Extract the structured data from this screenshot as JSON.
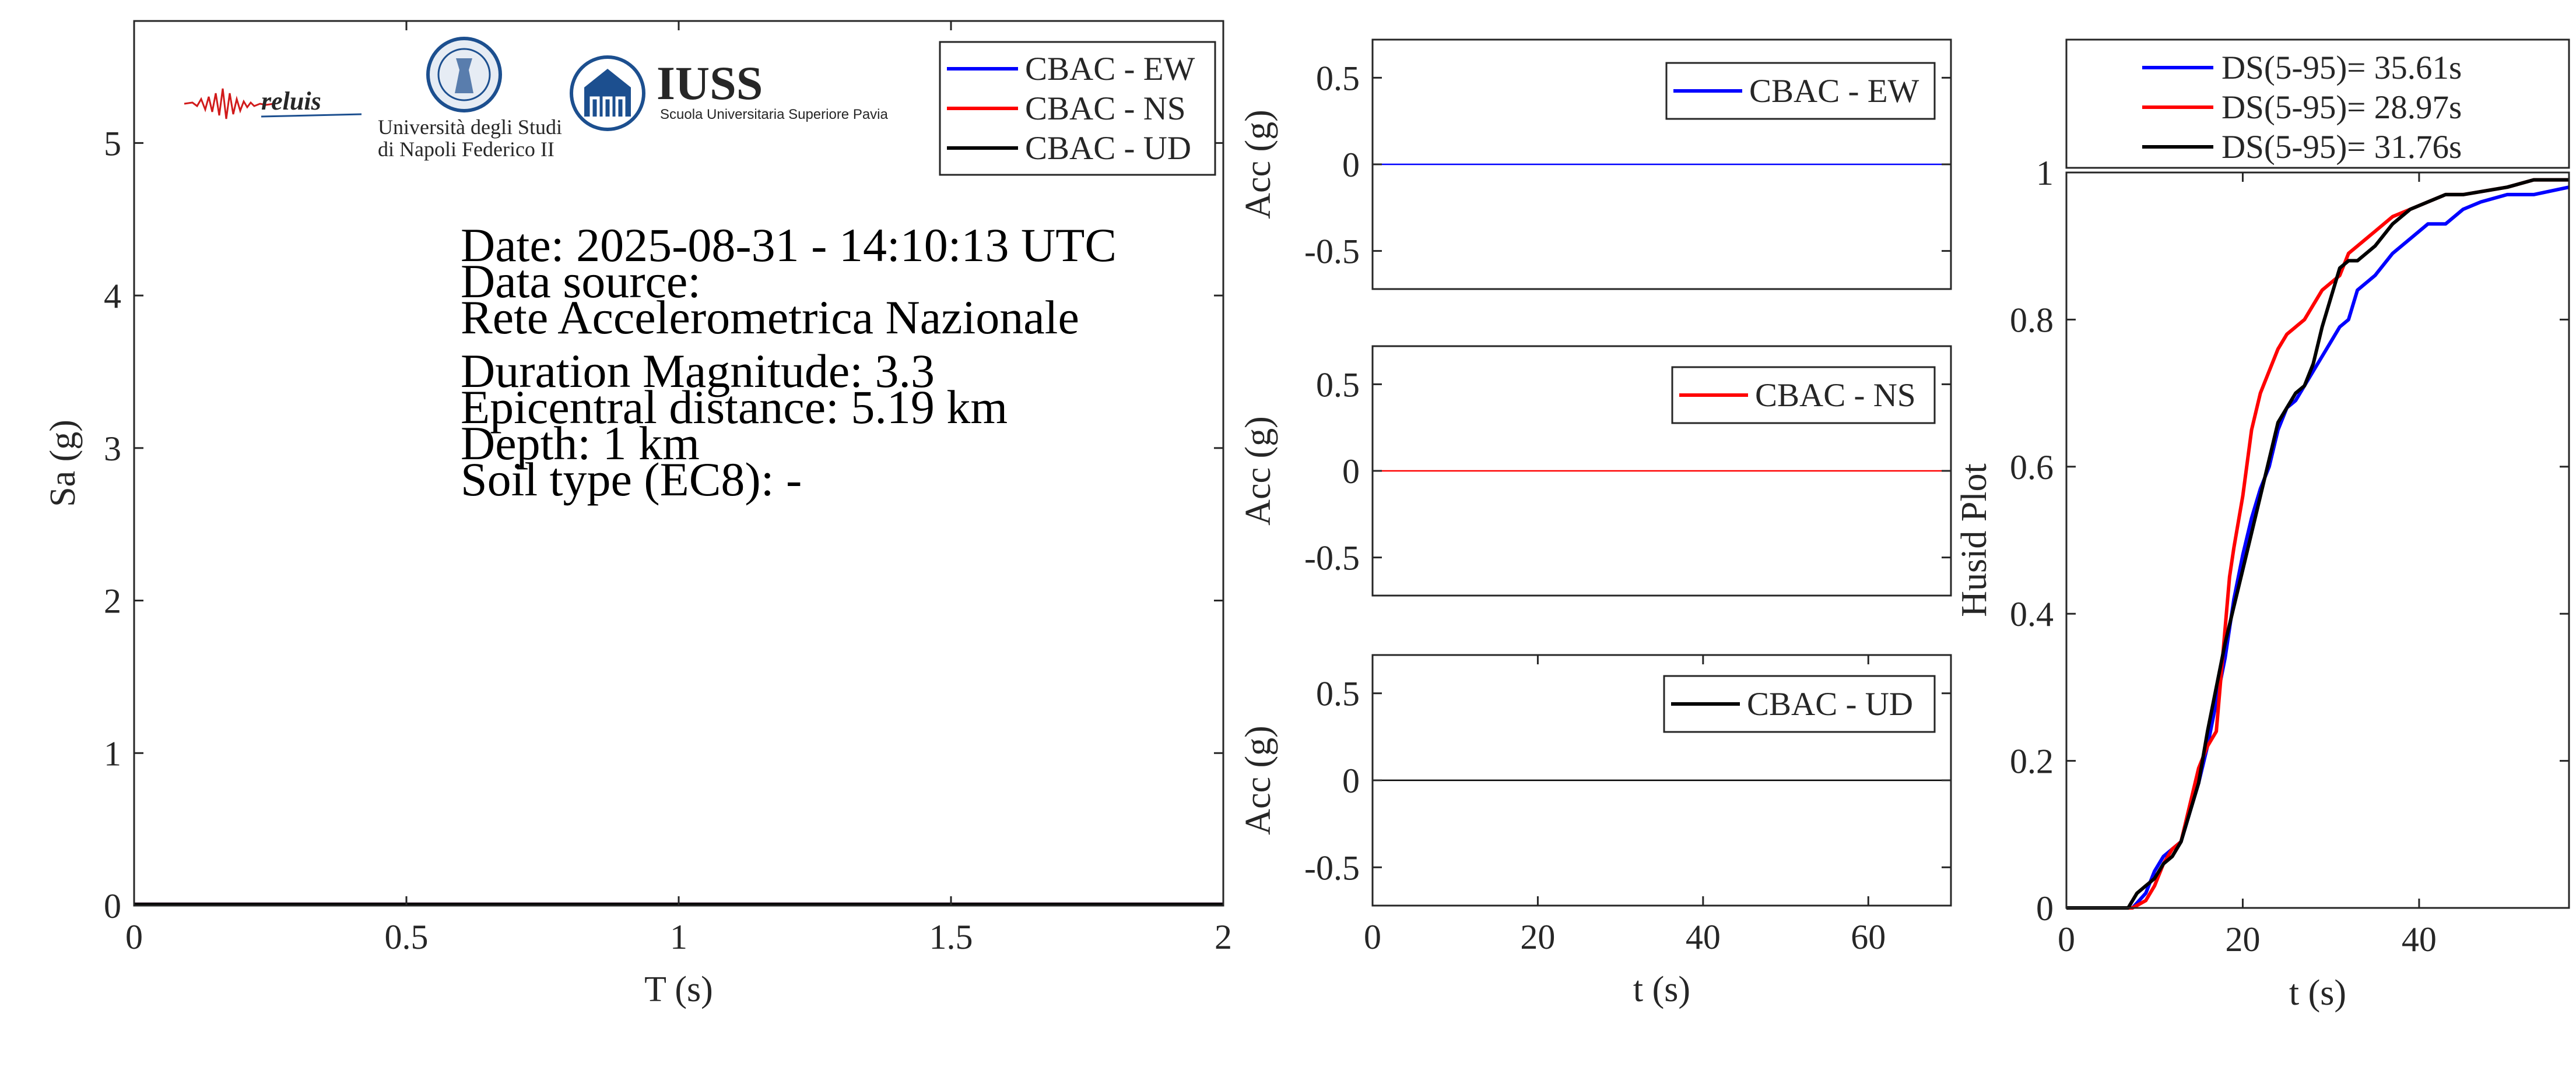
{
  "colors": {
    "ew": "#0000ff",
    "ns": "#ff0000",
    "ud": "#000000",
    "axis": "#262626",
    "iuss": "#1c4f8f"
  },
  "logos": {
    "reluis": "reluis",
    "unina_line1": "Università degli Studi",
    "unina_line2": "di Napoli Federico II",
    "iuss_name": "IUSS",
    "iuss_sub": "Scuola Universitaria Superiore Pavia"
  },
  "info": {
    "date": "Date: 2025-08-31 - 14:10:13 UTC",
    "source_label": "Data source:",
    "source": "Rete Accelerometrica Nazionale",
    "magnitude": "Duration Magnitude: 3.3",
    "distance": "Epicentral distance: 5.19 km",
    "depth": "Depth: 1 km",
    "soil": "Soil type (EC8): -"
  },
  "chart_data": [
    {
      "id": "spectrum",
      "type": "line",
      "xlabel": "T (s)",
      "ylabel": "Sa (g)",
      "xlim": [
        0,
        2
      ],
      "ylim": [
        0,
        5.8
      ],
      "xticks": [
        0,
        0.5,
        1,
        1.5,
        2
      ],
      "xtick_labels": [
        "0",
        "0.5",
        "1",
        "1.5",
        "2"
      ],
      "yticks": [
        0,
        1,
        2,
        3,
        4,
        5
      ],
      "ytick_labels": [
        "0",
        "1",
        "2",
        "3",
        "4",
        "5"
      ],
      "legend_position": "top-right",
      "series": [
        {
          "name": "CBAC - EW",
          "color_key": "ew",
          "x": [
            0,
            2
          ],
          "y": [
            0.01,
            0.01
          ]
        },
        {
          "name": "CBAC - NS",
          "color_key": "ns",
          "x": [
            0,
            2
          ],
          "y": [
            0.01,
            0.01
          ]
        },
        {
          "name": "CBAC - UD",
          "color_key": "ud",
          "x": [
            0,
            2
          ],
          "y": [
            0.01,
            0.01
          ]
        }
      ]
    },
    {
      "id": "acc-ew",
      "type": "line",
      "xlabel": "",
      "ylabel": "Acc (g)",
      "xlim": [
        0,
        70
      ],
      "ylim": [
        -0.72,
        0.72
      ],
      "xticks": [],
      "xtick_labels": [],
      "yticks": [
        -0.5,
        0,
        0.5
      ],
      "ytick_labels": [
        "-0.5",
        "0",
        "0.5"
      ],
      "legend_position": "top-right",
      "series": [
        {
          "name": "CBAC - EW",
          "color_key": "ew",
          "x": [
            0,
            70
          ],
          "y": [
            0,
            0
          ]
        }
      ]
    },
    {
      "id": "acc-ns",
      "type": "line",
      "xlabel": "",
      "ylabel": "Acc (g)",
      "xlim": [
        0,
        70
      ],
      "ylim": [
        -0.72,
        0.72
      ],
      "xticks": [],
      "xtick_labels": [],
      "yticks": [
        -0.5,
        0,
        0.5
      ],
      "ytick_labels": [
        "-0.5",
        "0",
        "0.5"
      ],
      "legend_position": "top-right",
      "series": [
        {
          "name": "CBAC - NS",
          "color_key": "ns",
          "x": [
            0,
            70
          ],
          "y": [
            0,
            0
          ]
        }
      ]
    },
    {
      "id": "acc-ud",
      "type": "line",
      "xlabel": "t (s)",
      "ylabel": "Acc (g)",
      "xlim": [
        0,
        70
      ],
      "ylim": [
        -0.72,
        0.72
      ],
      "xticks": [
        0,
        20,
        40,
        60
      ],
      "xtick_labels": [
        "0",
        "20",
        "40",
        "60"
      ],
      "yticks": [
        -0.5,
        0,
        0.5
      ],
      "ytick_labels": [
        "-0.5",
        "0",
        "0.5"
      ],
      "legend_position": "top-right",
      "series": [
        {
          "name": "CBAC - UD",
          "color_key": "ud",
          "x": [
            0,
            70
          ],
          "y": [
            0,
            0
          ]
        }
      ]
    },
    {
      "id": "husid",
      "type": "line",
      "xlabel": "t (s)",
      "ylabel": "Husid Plot",
      "xlim": [
        0,
        57
      ],
      "ylim": [
        0,
        1
      ],
      "xticks": [
        0,
        20,
        40
      ],
      "xtick_labels": [
        "0",
        "20",
        "40"
      ],
      "yticks": [
        0,
        0.2,
        0.4,
        0.6,
        0.8,
        1
      ],
      "ytick_labels": [
        "0",
        "0.2",
        "0.4",
        "0.6",
        "0.8",
        "1"
      ],
      "legend_position": "outside-top",
      "series": [
        {
          "name": "DS(5-95)= 35.61s",
          "color_key": "ew",
          "x": [
            0,
            7.5,
            9,
            10,
            11,
            12,
            13,
            14,
            15,
            16,
            17,
            18,
            19,
            20,
            21,
            22,
            23,
            24,
            25,
            26,
            27,
            28,
            29,
            30,
            31,
            32,
            33,
            35,
            37,
            39,
            41,
            43,
            45,
            47,
            50,
            53,
            57
          ],
          "y": [
            0,
            0,
            0.02,
            0.05,
            0.07,
            0.08,
            0.09,
            0.13,
            0.17,
            0.22,
            0.28,
            0.34,
            0.42,
            0.48,
            0.53,
            0.57,
            0.6,
            0.65,
            0.68,
            0.69,
            0.71,
            0.73,
            0.75,
            0.77,
            0.79,
            0.8,
            0.84,
            0.86,
            0.89,
            0.91,
            0.93,
            0.93,
            0.95,
            0.96,
            0.97,
            0.97,
            0.98
          ]
        },
        {
          "name": "DS(5-95)= 28.97s",
          "color_key": "ns",
          "x": [
            0,
            7.5,
            9,
            10,
            11,
            12,
            13,
            14,
            15,
            16,
            17,
            18,
            18.5,
            19,
            20,
            21,
            22,
            23,
            24,
            25,
            26,
            27,
            28,
            29,
            30,
            31,
            32,
            33,
            35,
            37,
            39,
            41,
            43,
            45,
            50,
            53,
            57
          ],
          "y": [
            0,
            0,
            0.01,
            0.03,
            0.06,
            0.08,
            0.09,
            0.14,
            0.19,
            0.22,
            0.24,
            0.38,
            0.45,
            0.49,
            0.56,
            0.65,
            0.7,
            0.73,
            0.76,
            0.78,
            0.79,
            0.8,
            0.82,
            0.84,
            0.85,
            0.86,
            0.89,
            0.9,
            0.92,
            0.94,
            0.95,
            0.96,
            0.97,
            0.97,
            0.98,
            0.99,
            0.99
          ]
        },
        {
          "name": "DS(5-95)= 31.76s",
          "color_key": "ud",
          "x": [
            0,
            7,
            8,
            9,
            10,
            11,
            12,
            13,
            14,
            15,
            16,
            17,
            18,
            19,
            20,
            21,
            22,
            23,
            24,
            25,
            26,
            27,
            28,
            29,
            30,
            31,
            32,
            33,
            35,
            37,
            39,
            41,
            43,
            45,
            50,
            53,
            57
          ],
          "y": [
            0,
            0,
            0.02,
            0.03,
            0.04,
            0.06,
            0.07,
            0.09,
            0.13,
            0.17,
            0.24,
            0.3,
            0.36,
            0.41,
            0.46,
            0.51,
            0.56,
            0.61,
            0.66,
            0.68,
            0.7,
            0.71,
            0.74,
            0.79,
            0.83,
            0.87,
            0.88,
            0.88,
            0.9,
            0.93,
            0.95,
            0.96,
            0.97,
            0.97,
            0.98,
            0.99,
            0.99
          ]
        }
      ]
    }
  ]
}
